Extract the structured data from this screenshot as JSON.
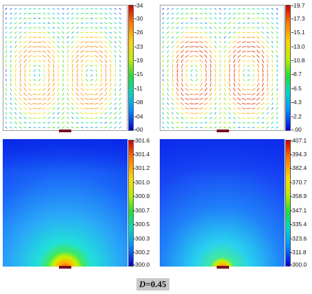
{
  "panels": {
    "top_left": {
      "type": "velocity-vectors",
      "colorbar_ticks": [
        "34",
        "30",
        "26",
        "23",
        "19",
        "15",
        "11",
        "08",
        "04",
        "00"
      ]
    },
    "top_right": {
      "type": "velocity-vectors",
      "colorbar_ticks": [
        "19.7",
        "17.3",
        "15.1",
        "13.0",
        "10.8",
        "8.7",
        "6.5",
        "4.3",
        "2.2",
        ".00"
      ]
    },
    "bottom_left": {
      "type": "temperature-contour",
      "colorbar_ticks": [
        "301.6",
        "301.4",
        "301.2",
        "301.0",
        "300.9",
        "300.7",
        "300.5",
        "300.3",
        "300.2",
        "300.0"
      ]
    },
    "bottom_right": {
      "type": "temperature-contour",
      "colorbar_ticks": [
        "407.1",
        "394.3",
        "382.4",
        "370.7",
        "358.9",
        "347.1",
        "335.4",
        "323.6",
        "311.8",
        "300.0"
      ]
    }
  },
  "caption": {
    "symbol": "D",
    "value": "=0.45"
  },
  "colors": {
    "heater": "#7a1020",
    "caption_bg": "#c8c8c8"
  }
}
